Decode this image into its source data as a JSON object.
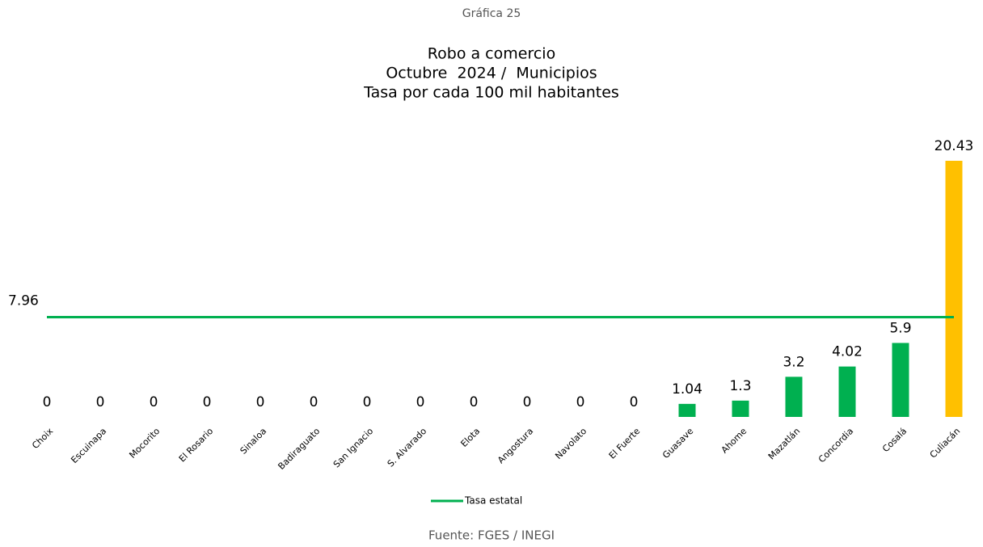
{
  "chart_data": {
    "type": "bar",
    "caption": "Gráfica 25",
    "title": [
      "Robo a comercio",
      "Octubre  2024 /  Municipios",
      "Tasa por cada 100 mil habitantes"
    ],
    "categories": [
      "Choix",
      "Escuinapa",
      "Mocorito",
      "El Rosario",
      "Sinaloa",
      "Badiraguato",
      "San Ignacio",
      "S. Alvarado",
      "Elota",
      "Angostura",
      "Navolato",
      "El Fuerte",
      "Guasave",
      "Ahome",
      "Mazatlán",
      "Concordia",
      "Cosalá",
      "Culiacán"
    ],
    "values": [
      0,
      0,
      0,
      0,
      0,
      0,
      0,
      0,
      0,
      0,
      0,
      0,
      1.04,
      1.3,
      3.2,
      4.02,
      5.9,
      20.43
    ],
    "colors": [
      "#00b050",
      "#00b050",
      "#00b050",
      "#00b050",
      "#00b050",
      "#00b050",
      "#00b050",
      "#00b050",
      "#00b050",
      "#00b050",
      "#00b050",
      "#00b050",
      "#00b050",
      "#00b050",
      "#00b050",
      "#00b050",
      "#00b050",
      "#ffc000"
    ],
    "reference_line": {
      "name": "Tasa estatal",
      "value": 7.96,
      "color": "#00b050"
    },
    "source": "Fuente: FGES / INEGI"
  }
}
